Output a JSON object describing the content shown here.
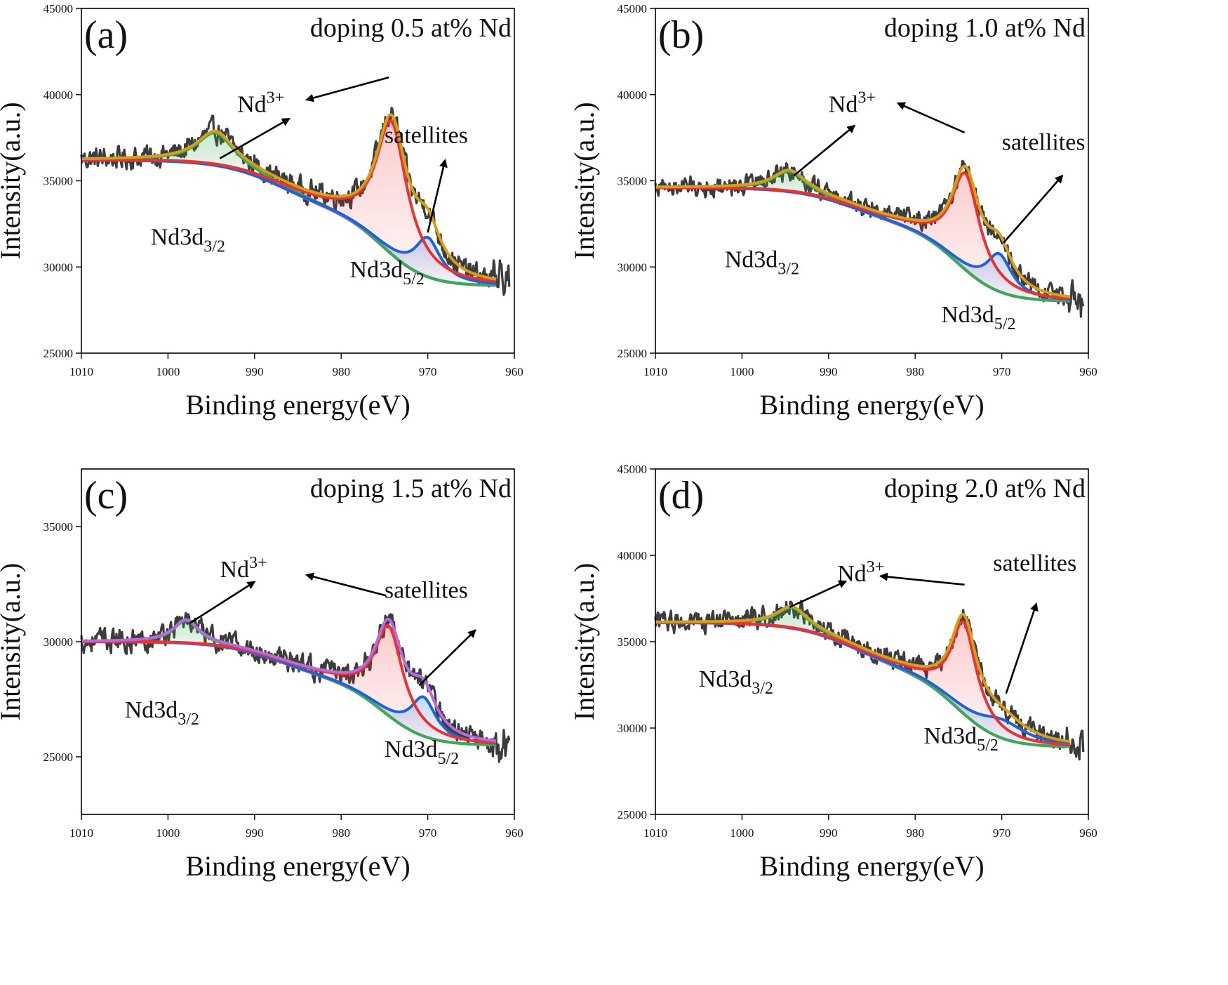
{
  "chart_data": [
    {
      "panel": "(a)",
      "type": "line",
      "doping_label": "doping 0.5 at% Nd",
      "xlabel": "Binding energy(eV)",
      "ylabel": "Intensity(a.u.)",
      "xlim": [
        1010,
        960
      ],
      "ylim": [
        25000,
        45000
      ],
      "xticks": [
        1010,
        1000,
        990,
        980,
        970,
        960
      ],
      "yticks": [
        25000,
        30000,
        35000,
        40000,
        45000
      ],
      "bg_start": 36200,
      "bg_mid": 33200,
      "bg_end": 28900,
      "red_peak": {
        "center": 974.2,
        "height": 7700,
        "width": 2.2
      },
      "green_peak": {
        "center": 994.5,
        "height": 1900,
        "width": 2.6
      },
      "blue_peak": {
        "center": 970.0,
        "height": 2300,
        "width": 1.8
      },
      "noise_amp": 550,
      "annotations": {
        "nd3plus": {
          "text": "Nd",
          "sup": "3+",
          "x": 992,
          "y": 39000
        },
        "d32": {
          "text": "Nd3d",
          "sub": "3/2",
          "x": 1002,
          "y": 31300
        },
        "d52": {
          "text": "Nd3d",
          "sub": "5/2",
          "x": 979,
          "y": 29400
        },
        "satellites": {
          "text": "satellites",
          "x": 975,
          "y": 37200
        }
      }
    },
    {
      "panel": "(b)",
      "type": "line",
      "doping_label": "doping 1.0 at% Nd",
      "xlabel": "Binding energy(eV)",
      "ylabel": "Intensity(a.u.)",
      "xlim": [
        1010,
        960
      ],
      "ylim": [
        25000,
        45000
      ],
      "xticks": [
        1010,
        1000,
        990,
        980,
        970,
        960
      ],
      "yticks": [
        25000,
        30000,
        35000,
        40000,
        45000
      ],
      "bg_start": 34600,
      "bg_mid": 32300,
      "bg_end": 28000,
      "red_peak": {
        "center": 974.2,
        "height": 5600,
        "width": 2.0
      },
      "green_peak": {
        "center": 994.5,
        "height": 1200,
        "width": 2.3
      },
      "blue_peak": {
        "center": 970.3,
        "height": 2200,
        "width": 1.8
      },
      "noise_amp": 480,
      "annotations": {
        "nd3plus": {
          "text": "Nd",
          "sup": "3+",
          "x": 990,
          "y": 39000
        },
        "d32": {
          "text": "Nd3d",
          "sub": "3/2",
          "x": 1002,
          "y": 30000
        },
        "d52": {
          "text": "Nd3d",
          "sub": "5/2",
          "x": 977,
          "y": 26800
        },
        "satellites": {
          "text": "satellites",
          "x": 970,
          "y": 36800
        }
      }
    },
    {
      "panel": "(c)",
      "type": "line",
      "doping_label": "doping 1.5 at% Nd",
      "xlabel": "Binding energy(eV)",
      "ylabel": "Intensity(a.u.)",
      "xlim": [
        1010,
        960
      ],
      "ylim": [
        22500,
        37500
      ],
      "xticks": [
        1010,
        1000,
        990,
        980,
        970,
        960
      ],
      "yticks": [
        25000,
        30000,
        35000
      ],
      "bg_start": 30000,
      "bg_mid": 28300,
      "bg_end": 25500,
      "red_peak": {
        "center": 974.5,
        "height": 3900,
        "width": 2.0
      },
      "green_peak": {
        "center": 997.9,
        "height": 1000,
        "width": 1.8
      },
      "blue_peak": {
        "center": 970.5,
        "height": 1700,
        "width": 1.8
      },
      "noise_amp": 420,
      "annotations": {
        "nd3plus": {
          "text": "Nd",
          "sup": "3+",
          "x": 994,
          "y": 32800
        },
        "d32": {
          "text": "Nd3d",
          "sub": "3/2",
          "x": 1005,
          "y": 26700
        },
        "d52": {
          "text": "Nd3d",
          "sub": "5/2",
          "x": 975,
          "y": 25000
        },
        "satellites": {
          "text": "satellites",
          "x": 975,
          "y": 31900
        }
      }
    },
    {
      "panel": "(d)",
      "type": "line",
      "doping_label": "doping 2.0 at% Nd",
      "xlabel": "Binding energy(eV)",
      "ylabel": "Intensity(a.u.)",
      "xlim": [
        1010,
        960
      ],
      "ylim": [
        25000,
        45000
      ],
      "xticks": [
        1010,
        1000,
        990,
        980,
        970,
        960
      ],
      "yticks": [
        25000,
        30000,
        35000,
        40000,
        45000
      ],
      "bg_start": 36100,
      "bg_mid": 33200,
      "bg_end": 28900,
      "red_peak": {
        "center": 974.4,
        "height": 5300,
        "width": 1.8
      },
      "green_peak": {
        "center": 994.2,
        "height": 1200,
        "width": 2.2
      },
      "blue_peak": {
        "center": 970.0,
        "height": 1100,
        "width": 3.5
      },
      "noise_amp": 500,
      "annotations": {
        "nd3plus": {
          "text": "Nd",
          "sup": "3+",
          "x": 989,
          "y": 38500
        },
        "d32": {
          "text": "Nd3d",
          "sub": "3/2",
          "x": 1005,
          "y": 32400
        },
        "d52": {
          "text": "Nd3d",
          "sub": "5/2",
          "x": 979,
          "y": 29100
        },
        "satellites": {
          "text": "satellites",
          "x": 971,
          "y": 39100
        }
      }
    }
  ],
  "colors": {
    "raw": "#3c3c3c",
    "fit_total_ab": "#d4a017",
    "fit_total_c": "#b56ce0",
    "peak_main": "#ee3030",
    "peak_3_2": "#3aaa55",
    "satellite": "#1f63d6",
    "background": "#a35fd0"
  }
}
